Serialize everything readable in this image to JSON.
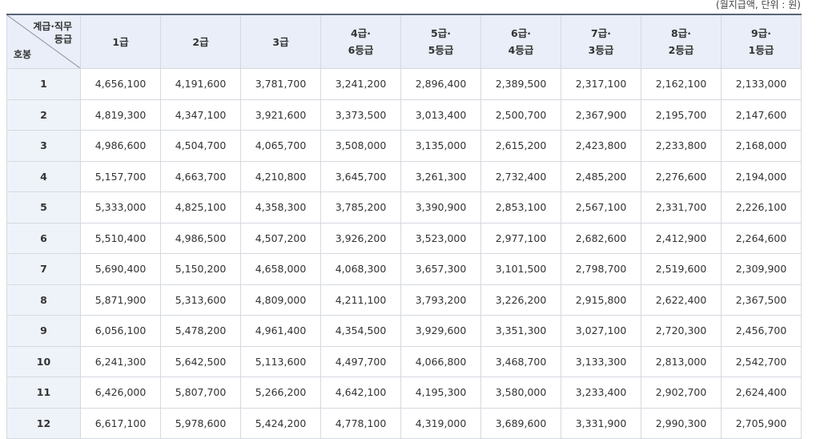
{
  "note": "(월지급액, 단위 : 원)",
  "header": {
    "corner_top": [
      "계급·직무",
      "등급"
    ],
    "corner_bottom": "호봉",
    "columns": [
      [
        "1급"
      ],
      [
        "2급"
      ],
      [
        "3급"
      ],
      [
        "4급·",
        "6등급"
      ],
      [
        "5급·",
        "5등급"
      ],
      [
        "6급·",
        "4등급"
      ],
      [
        "7급·",
        "3등급"
      ],
      [
        "8급·",
        "2등급"
      ],
      [
        "9급·",
        "1등급"
      ]
    ]
  },
  "table": {
    "rows": [
      [
        "1",
        "4,656,100",
        "4,191,600",
        "3,781,700",
        "3,241,200",
        "2,896,400",
        "2,389,500",
        "2,317,100",
        "2,162,100",
        "2,133,000"
      ],
      [
        "2",
        "4,819,300",
        "4,347,100",
        "3,921,600",
        "3,373,500",
        "3,013,400",
        "2,500,700",
        "2,367,900",
        "2,195,700",
        "2,147,600"
      ],
      [
        "3",
        "4,986,600",
        "4,504,700",
        "4,065,700",
        "3,508,000",
        "3,135,000",
        "2,615,200",
        "2,423,800",
        "2,233,800",
        "2,168,000"
      ],
      [
        "4",
        "5,157,700",
        "4,663,700",
        "4,210,800",
        "3,645,700",
        "3,261,300",
        "2,732,400",
        "2,485,200",
        "2,276,600",
        "2,194,000"
      ],
      [
        "5",
        "5,333,000",
        "4,825,100",
        "4,358,300",
        "3,785,200",
        "3,390,900",
        "2,853,100",
        "2,567,100",
        "2,331,700",
        "2,226,100"
      ],
      [
        "6",
        "5,510,400",
        "4,986,500",
        "4,507,200",
        "3,926,200",
        "3,523,000",
        "2,977,100",
        "2,682,600",
        "2,412,900",
        "2,264,600"
      ],
      [
        "7",
        "5,690,400",
        "5,150,200",
        "4,658,000",
        "4,068,300",
        "3,657,300",
        "3,101,500",
        "2,798,700",
        "2,519,600",
        "2,309,900"
      ],
      [
        "8",
        "5,871,900",
        "5,313,600",
        "4,809,000",
        "4,211,100",
        "3,793,200",
        "3,226,200",
        "2,915,800",
        "2,622,400",
        "2,367,500"
      ],
      [
        "9",
        "6,056,100",
        "5,478,200",
        "4,961,400",
        "4,354,500",
        "3,929,600",
        "3,351,300",
        "3,027,100",
        "2,720,300",
        "2,456,700"
      ],
      [
        "10",
        "6,241,300",
        "5,642,500",
        "5,113,600",
        "4,497,700",
        "4,066,800",
        "3,468,700",
        "3,133,300",
        "2,813,000",
        "2,542,700"
      ],
      [
        "11",
        "6,426,000",
        "5,807,700",
        "5,266,200",
        "4,642,100",
        "4,195,300",
        "3,580,000",
        "3,233,400",
        "2,902,700",
        "2,624,400"
      ],
      [
        "12",
        "6,617,100",
        "5,978,600",
        "5,424,200",
        "4,778,100",
        "4,319,000",
        "3,689,600",
        "3,331,900",
        "2,990,300",
        "2,705,900"
      ]
    ]
  }
}
